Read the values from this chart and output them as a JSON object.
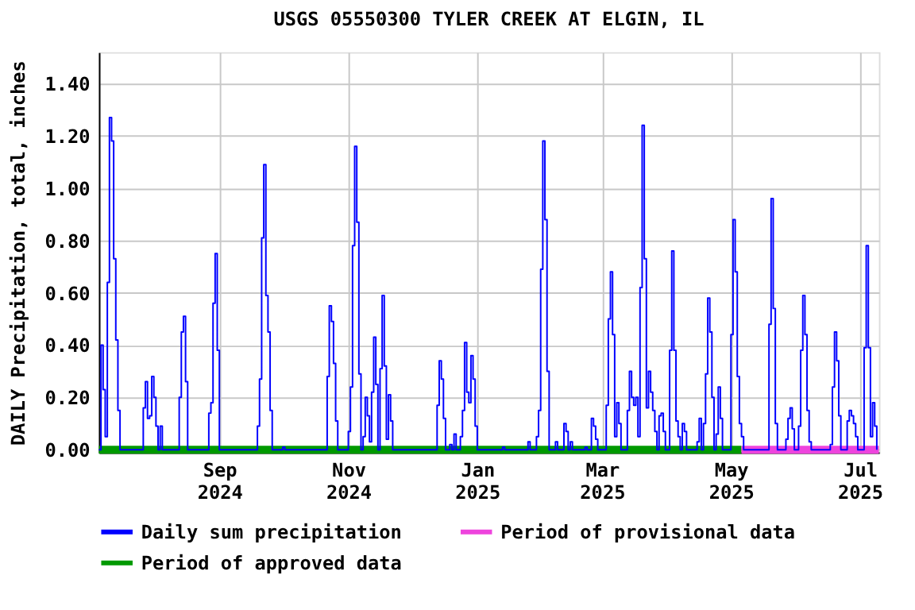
{
  "chart_data": {
    "type": "line",
    "title": "USGS 05550300 TYLER CREEK AT ELGIN, IL",
    "ylabel": "DAILY Precipitation, total, inches",
    "x": [
      "2024-07-06",
      "2024-07-07",
      "2024-07-08",
      "2024-07-09",
      "2024-07-10",
      "2024-07-11",
      "2024-07-12",
      "2024-07-13",
      "2024-07-14",
      "2024-07-15",
      "2024-07-16",
      "2024-07-26",
      "2024-07-27",
      "2024-07-28",
      "2024-07-29",
      "2024-07-30",
      "2024-07-31",
      "2024-08-01",
      "2024-08-02",
      "2024-08-03",
      "2024-08-04",
      "2024-08-05",
      "2024-08-12",
      "2024-08-13",
      "2024-08-14",
      "2024-08-15",
      "2024-08-16",
      "2024-08-17",
      "2024-08-26",
      "2024-08-27",
      "2024-08-28",
      "2024-08-29",
      "2024-08-30",
      "2024-08-31",
      "2024-09-01",
      "2024-09-18",
      "2024-09-19",
      "2024-09-20",
      "2024-09-21",
      "2024-09-22",
      "2024-09-23",
      "2024-09-24",
      "2024-09-25",
      "2024-09-26",
      "2024-10-01",
      "2024-10-02",
      "2024-10-21",
      "2024-10-22",
      "2024-10-23",
      "2024-10-24",
      "2024-10-25",
      "2024-10-26",
      "2024-10-27",
      "2024-10-31",
      "2024-11-01",
      "2024-11-02",
      "2024-11-03",
      "2024-11-04",
      "2024-11-05",
      "2024-11-06",
      "2024-11-07",
      "2024-11-08",
      "2024-11-09",
      "2024-11-10",
      "2024-11-11",
      "2024-11-12",
      "2024-11-13",
      "2024-11-14",
      "2024-11-15",
      "2024-11-16",
      "2024-11-17",
      "2024-11-18",
      "2024-11-19",
      "2024-11-20",
      "2024-11-21",
      "2024-11-22",
      "2024-12-12",
      "2024-12-13",
      "2024-12-14",
      "2024-12-15",
      "2024-12-16",
      "2024-12-17",
      "2024-12-19",
      "2024-12-20",
      "2024-12-21",
      "2024-12-22",
      "2024-12-24",
      "2024-12-25",
      "2024-12-26",
      "2024-12-27",
      "2024-12-28",
      "2024-12-29",
      "2024-12-30",
      "2024-12-31",
      "2025-01-01",
      "2025-01-13",
      "2025-01-14",
      "2025-01-25",
      "2025-01-26",
      "2025-01-28",
      "2025-01-29",
      "2025-01-30",
      "2025-01-31",
      "2025-02-01",
      "2025-02-02",
      "2025-02-03",
      "2025-02-04",
      "2025-02-07",
      "2025-02-08",
      "2025-02-10",
      "2025-02-11",
      "2025-02-12",
      "2025-02-13",
      "2025-02-14",
      "2025-02-15",
      "2025-02-21",
      "2025-02-22",
      "2025-02-23",
      "2025-02-24",
      "2025-02-25",
      "2025-02-26",
      "2025-02-27",
      "2025-03-02",
      "2025-03-03",
      "2025-03-04",
      "2025-03-05",
      "2025-03-06",
      "2025-03-07",
      "2025-03-08",
      "2025-03-09",
      "2025-03-10",
      "2025-03-12",
      "2025-03-13",
      "2025-03-14",
      "2025-03-15",
      "2025-03-16",
      "2025-03-17",
      "2025-03-18",
      "2025-03-19",
      "2025-03-20",
      "2025-03-21",
      "2025-03-22",
      "2025-03-23",
      "2025-03-24",
      "2025-03-25",
      "2025-03-26",
      "2025-03-27",
      "2025-03-28",
      "2025-03-29",
      "2025-03-30",
      "2025-03-31",
      "2025-04-01",
      "2025-04-02",
      "2025-04-03",
      "2025-04-04",
      "2025-04-05",
      "2025-04-06",
      "2025-04-07",
      "2025-04-08",
      "2025-04-09",
      "2025-04-10",
      "2025-04-14",
      "2025-04-15",
      "2025-04-16",
      "2025-04-17",
      "2025-04-18",
      "2025-04-19",
      "2025-04-20",
      "2025-04-21",
      "2025-04-22",
      "2025-04-23",
      "2025-04-24",
      "2025-04-25",
      "2025-04-26",
      "2025-04-27",
      "2025-04-30",
      "2025-05-01",
      "2025-05-02",
      "2025-05-03",
      "2025-05-04",
      "2025-05-05",
      "2025-05-06",
      "2025-05-07",
      "2025-05-18",
      "2025-05-19",
      "2025-05-20",
      "2025-05-21",
      "2025-05-22",
      "2025-05-23",
      "2025-05-26",
      "2025-05-27",
      "2025-05-28",
      "2025-05-29",
      "2025-05-30",
      "2025-05-31",
      "2025-06-01",
      "2025-06-02",
      "2025-06-03",
      "2025-06-04",
      "2025-06-05",
      "2025-06-06",
      "2025-06-07",
      "2025-06-08",
      "2025-06-16",
      "2025-06-17",
      "2025-06-18",
      "2025-06-19",
      "2025-06-20",
      "2025-06-21",
      "2025-06-22",
      "2025-06-24",
      "2025-06-25",
      "2025-06-26",
      "2025-06-27",
      "2025-06-28",
      "2025-06-29",
      "2025-06-30",
      "2025-07-02",
      "2025-07-03",
      "2025-07-04",
      "2025-07-05",
      "2025-07-06",
      "2025-07-07",
      "2025-07-08",
      "2025-07-09"
    ],
    "series": [
      {
        "name": "Daily sum precipitation",
        "color": "#0000ff",
        "type": "step",
        "values": [
          0,
          0.4,
          0.23,
          0.05,
          0.64,
          1.27,
          1.18,
          0.73,
          0.42,
          0.15,
          0,
          0,
          0.16,
          0.26,
          0.12,
          0.13,
          0.28,
          0.2,
          0.09,
          0,
          0.09,
          0,
          0,
          0.2,
          0.45,
          0.51,
          0.26,
          0,
          0,
          0.14,
          0.18,
          0.56,
          0.75,
          0.38,
          0,
          0,
          0.09,
          0.27,
          0.81,
          1.09,
          0.59,
          0.45,
          0.15,
          0,
          0.01,
          0,
          0,
          0.28,
          0.55,
          0.49,
          0.33,
          0.11,
          0,
          0,
          0.07,
          0.24,
          0.78,
          1.16,
          0.87,
          0.29,
          0,
          0.05,
          0.2,
          0.13,
          0.03,
          0.22,
          0.43,
          0.25,
          0,
          0.31,
          0.59,
          0.32,
          0.04,
          0.21,
          0.11,
          0,
          0,
          0.17,
          0.34,
          0.27,
          0.12,
          0,
          0.02,
          0,
          0.06,
          0,
          0.05,
          0.15,
          0.41,
          0.22,
          0.18,
          0.36,
          0.27,
          0.09,
          0,
          0.01,
          0,
          0.03,
          0,
          0,
          0.05,
          0.15,
          0.69,
          1.18,
          0.88,
          0.3,
          0,
          0.03,
          0,
          0,
          0.1,
          0.07,
          0,
          0.03,
          0,
          0.01,
          0,
          0,
          0.12,
          0.09,
          0.04,
          0,
          0,
          0.17,
          0.5,
          0.68,
          0.44,
          0.05,
          0.18,
          0.1,
          0,
          0,
          0.15,
          0.3,
          0.2,
          0.17,
          0.2,
          0.05,
          0.62,
          1.24,
          0.73,
          0.16,
          0.3,
          0.22,
          0.15,
          0.07,
          0,
          0.13,
          0.14,
          0.07,
          0,
          0,
          0.38,
          0.76,
          0.38,
          0.11,
          0.05,
          0,
          0.1,
          0.07,
          0,
          0,
          0.03,
          0.12,
          0,
          0.1,
          0.29,
          0.58,
          0.45,
          0.2,
          0,
          0.06,
          0.24,
          0.12,
          0,
          0,
          0.44,
          0.88,
          0.68,
          0.28,
          0.1,
          0.05,
          0,
          0,
          0.48,
          0.96,
          0.54,
          0.1,
          0,
          0,
          0.04,
          0.12,
          0.16,
          0.08,
          0,
          0,
          0.09,
          0.38,
          0.59,
          0.44,
          0.15,
          0.03,
          0,
          0,
          0.02,
          0.24,
          0.45,
          0.34,
          0.13,
          0,
          0,
          0.11,
          0.15,
          0.13,
          0.1,
          0.05,
          0,
          0,
          0.39,
          0.78,
          0.39,
          0.05,
          0.18,
          0.09,
          0
        ]
      },
      {
        "name": "Period of provisional data",
        "color": "#ee44dd",
        "x": [
          "2025-05-06",
          "2025-07-10"
        ],
        "values": [
          0,
          0
        ]
      },
      {
        "name": "Period of approved data",
        "color": "#009900",
        "x": [
          "2024-07-06",
          "2025-05-06"
        ],
        "values": [
          0,
          0
        ]
      }
    ],
    "xlim": [
      "2024-07-06",
      "2025-07-10"
    ],
    "xticks": [
      {
        "value": "2024-09-01",
        "label": "Sep\n2024"
      },
      {
        "value": "2024-11-01",
        "label": "Nov\n2024"
      },
      {
        "value": "2025-01-01",
        "label": "Jan\n2025"
      },
      {
        "value": "2025-03-01",
        "label": "Mar\n2025"
      },
      {
        "value": "2025-05-01",
        "label": "May\n2025"
      },
      {
        "value": "2025-07-01",
        "label": "Jul\n2025"
      }
    ],
    "ylim": [
      -0.01,
      1.52
    ],
    "yticks": [
      {
        "value": 0,
        "label": "0.00"
      },
      {
        "value": 0.2,
        "label": "0.20"
      },
      {
        "value": 0.4,
        "label": "0.40"
      },
      {
        "value": 0.6,
        "label": "0.60"
      },
      {
        "value": 0.8,
        "label": "0.80"
      },
      {
        "value": 1.0,
        "label": "1.00"
      },
      {
        "value": 1.2,
        "label": "1.20"
      },
      {
        "value": 1.4,
        "label": "1.40"
      }
    ],
    "grid": true,
    "legend": "bottom",
    "marker": "none",
    "line_style": "solid"
  }
}
